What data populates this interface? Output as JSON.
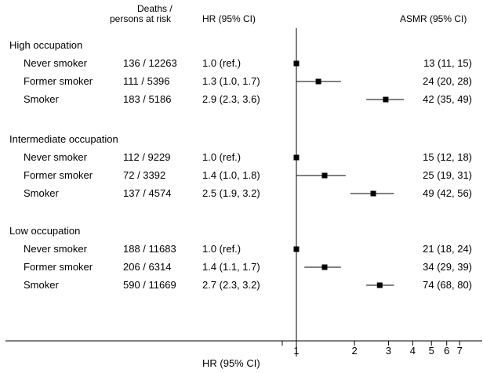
{
  "header": {
    "deaths_line1": "Deaths /",
    "deaths_line2": "persons at risk",
    "hr": "HR (95% CI)",
    "asmr": "ASMR (95% CI)"
  },
  "chart_data": {
    "type": "forest",
    "x_scale": "log",
    "xlim": [
      0.85,
      8
    ],
    "reference_line": 1,
    "xlabel": "HR (95% CI)",
    "xtick_labels": [
      {
        "value": 1,
        "label": "1"
      },
      {
        "value": 2,
        "label": "2"
      },
      {
        "value": 3,
        "label": "3"
      },
      {
        "value": 4,
        "label": "4"
      },
      {
        "value": 5,
        "label": "5"
      },
      {
        "value": 6,
        "label": "6"
      },
      {
        "value": 7,
        "label": "7"
      }
    ],
    "groups": [
      {
        "name": "High occupation",
        "rows": [
          {
            "label": "Never smoker",
            "deaths": "136 / 12263",
            "hr_text": "1.0 (ref.)",
            "asmr_text": "13 (11, 15)",
            "hr": 1.0,
            "lo": 1.0,
            "hi": 1.0
          },
          {
            "label": "Former smoker",
            "deaths": "111 / 5396",
            "hr_text": "1.3 (1.0, 1.7)",
            "asmr_text": "24 (20, 28)",
            "hr": 1.3,
            "lo": 1.0,
            "hi": 1.7
          },
          {
            "label": "Smoker",
            "deaths": "183 / 5186",
            "hr_text": "2.9 (2.3, 3.6)",
            "asmr_text": "42 (35, 49)",
            "hr": 2.9,
            "lo": 2.3,
            "hi": 3.6
          }
        ]
      },
      {
        "name": "Intermediate occupation",
        "rows": [
          {
            "label": "Never smoker",
            "deaths": "112 / 9229",
            "hr_text": "1.0 (ref.)",
            "asmr_text": "15 (12, 18)",
            "hr": 1.0,
            "lo": 1.0,
            "hi": 1.0
          },
          {
            "label": "Former smoker",
            "deaths": "72 / 3392",
            "hr_text": "1.4 (1.0, 1.8)",
            "asmr_text": "25 (19, 31)",
            "hr": 1.4,
            "lo": 1.0,
            "hi": 1.8
          },
          {
            "label": "Smoker",
            "deaths": "137 / 4574",
            "hr_text": "2.5 (1.9, 3.2)",
            "asmr_text": "49 (42, 56)",
            "hr": 2.5,
            "lo": 1.9,
            "hi": 3.2
          }
        ]
      },
      {
        "name": "Low occupation",
        "rows": [
          {
            "label": "Never smoker",
            "deaths": "188 / 11683",
            "hr_text": "1.0 (ref.)",
            "asmr_text": "21 (18, 24)",
            "hr": 1.0,
            "lo": 1.0,
            "hi": 1.0
          },
          {
            "label": "Former smoker",
            "deaths": "206 / 6314",
            "hr_text": "1.4 (1.1, 1.7)",
            "asmr_text": "34 (29, 39)",
            "hr": 1.4,
            "lo": 1.1,
            "hi": 1.7
          },
          {
            "label": "Smoker",
            "deaths": "590 / 11669",
            "hr_text": "2.7 (2.3, 3.2)",
            "asmr_text": "74 (68, 80)",
            "hr": 2.7,
            "lo": 2.3,
            "hi": 3.2
          }
        ]
      }
    ]
  }
}
